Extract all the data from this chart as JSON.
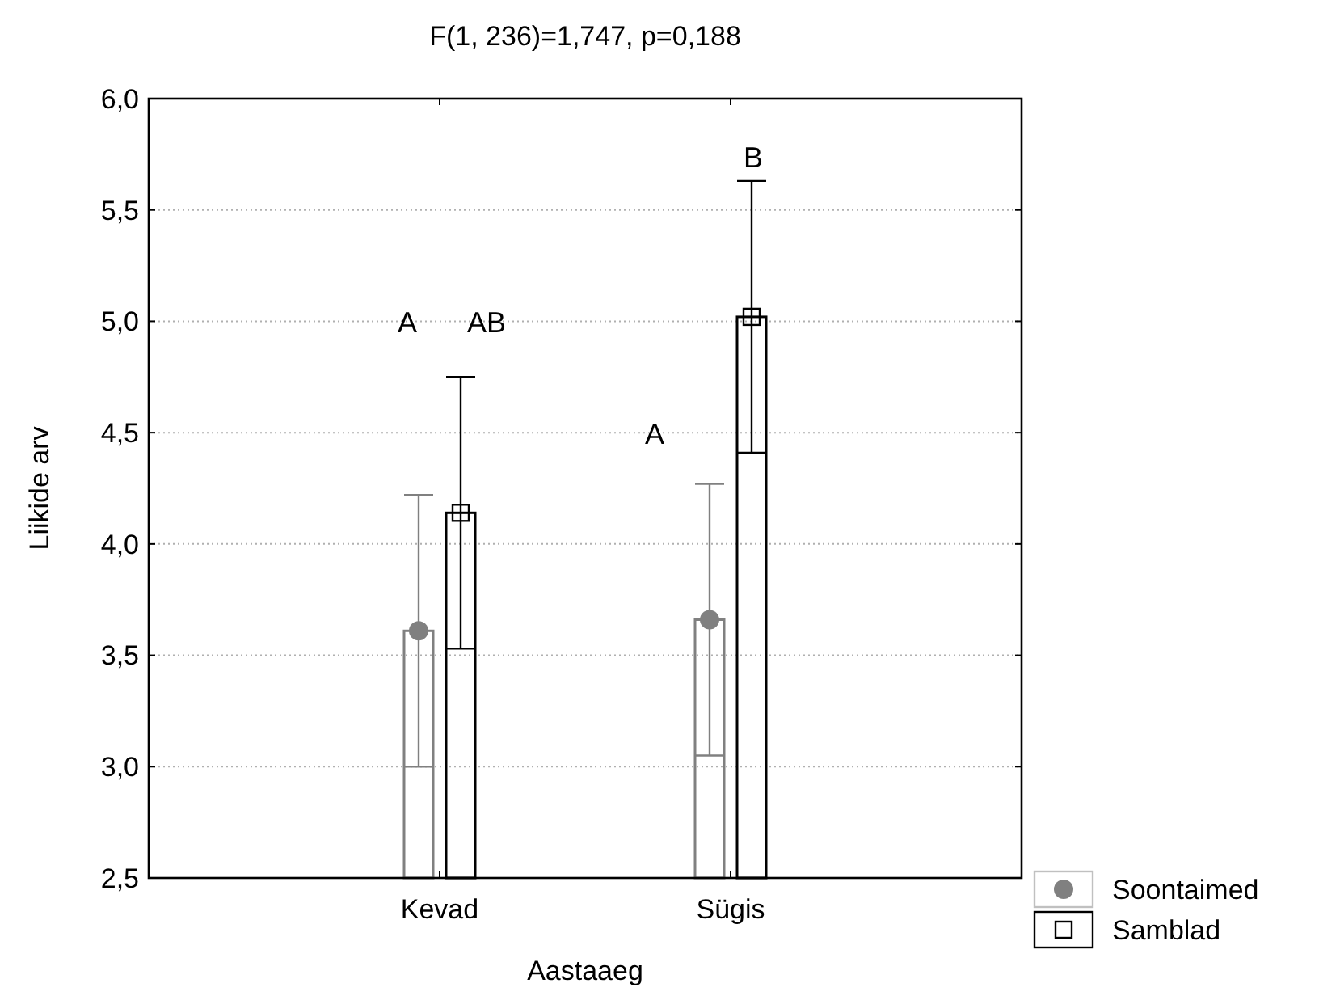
{
  "chart_data": {
    "type": "bar",
    "title": "F(1, 236)=1,747, p=0,188",
    "xlabel": "Aastaaeg",
    "ylabel": "Liikide arv",
    "categories": [
      "Kevad",
      "Sügis"
    ],
    "series": [
      {
        "name": "Soontaimed",
        "color": "#808080",
        "marker": "circle",
        "values": [
          3.61,
          3.66
        ],
        "errors": [
          0.61,
          0.61
        ]
      },
      {
        "name": "Samblad",
        "color": "#000000",
        "marker": "square",
        "values": [
          4.14,
          5.02
        ],
        "errors": [
          0.61,
          0.61
        ]
      },
      {
        "type": "scatter",
        "color": "#808080",
        "marker": "circle",
        "x": [
          "Kevad",
          "Sügis"
        ],
        "values": [
          3.61,
          3.66
        ]
      },
      {
        "type": "scatter",
        "color": "#000000",
        "marker": "square",
        "x": [
          "Kevad",
          "Sügis"
        ],
        "values": [
          4.14,
          5.02
        ]
      }
    ],
    "ylim": [
      2.5,
      6.0
    ],
    "yticks": [
      {
        "value": 2.5,
        "label": "2,5"
      },
      {
        "value": 3.0,
        "label": "3,0"
      },
      {
        "value": 3.5,
        "label": "3,5"
      },
      {
        "value": 4.0,
        "label": "4,0"
      },
      {
        "value": 4.5,
        "label": "4,5"
      },
      {
        "value": 5.0,
        "label": "5,0"
      },
      {
        "value": 5.5,
        "label": "5,5"
      },
      {
        "value": 6.0,
        "label": "6,0"
      }
    ],
    "grid": "y",
    "legend": "bottom right",
    "annotations": [
      "A",
      "AB",
      "A",
      "B"
    ]
  }
}
